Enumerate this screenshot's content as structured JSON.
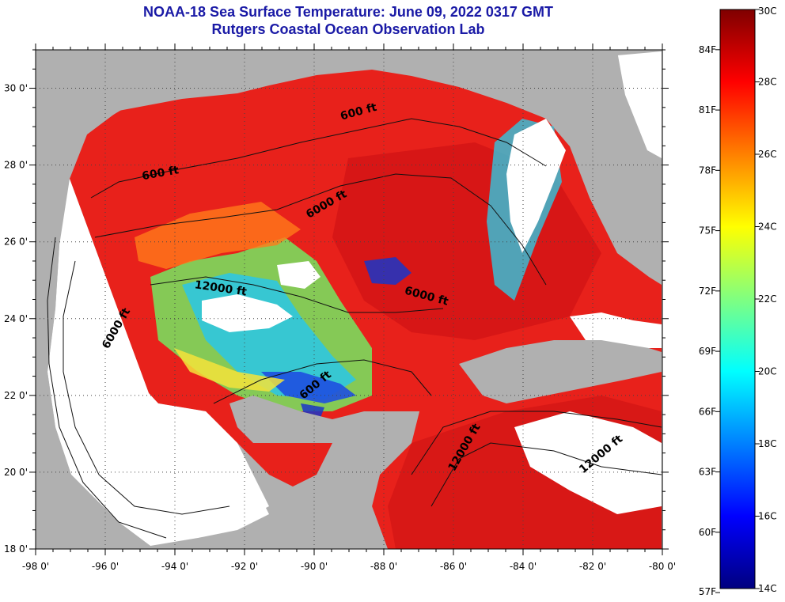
{
  "header": {
    "title_line1": "NOAA-18 Sea Surface Temperature:  June 09, 2022 0317 GMT",
    "title_line2": "Rutgers Coastal Ocean Observation Lab"
  },
  "map": {
    "lon_range": [
      -98,
      -80
    ],
    "lat_range": [
      18,
      31
    ],
    "lon_ticks": [
      {
        "value": -98,
        "label": "-98 0'"
      },
      {
        "value": -96,
        "label": "-96 0'"
      },
      {
        "value": -94,
        "label": "-94 0'"
      },
      {
        "value": -92,
        "label": "-92 0'"
      },
      {
        "value": -90,
        "label": "-90 0'"
      },
      {
        "value": -88,
        "label": "-88 0'"
      },
      {
        "value": -86,
        "label": "-86 0'"
      },
      {
        "value": -84,
        "label": "-84 0'"
      },
      {
        "value": -82,
        "label": "-82 0'"
      },
      {
        "value": -80,
        "label": "-80 0'"
      }
    ],
    "lat_ticks": [
      {
        "value": 30,
        "label": "30 0'"
      },
      {
        "value": 28,
        "label": "28 0'"
      },
      {
        "value": 26,
        "label": "26 0'"
      },
      {
        "value": 24,
        "label": "24 0'"
      },
      {
        "value": 22,
        "label": "22 0'"
      },
      {
        "value": 20,
        "label": "20 0'"
      },
      {
        "value": 18,
        "label": "18 0'"
      }
    ],
    "contour_labels": [
      {
        "text": "600 ft",
        "lon": -94.4,
        "lat": 27.7,
        "angle": -10
      },
      {
        "text": "600 ft",
        "lon": -88.7,
        "lat": 29.3,
        "angle": -15
      },
      {
        "text": "6000 ft",
        "lon": -89.6,
        "lat": 26.9,
        "angle": -30
      },
      {
        "text": "12000 ft",
        "lon": -92.7,
        "lat": 24.7,
        "angle": 8
      },
      {
        "text": "6000 ft",
        "lon": -86.8,
        "lat": 24.5,
        "angle": 15
      },
      {
        "text": "6000 ft",
        "lon": -95.6,
        "lat": 23.7,
        "angle": -60
      },
      {
        "text": "600 ft",
        "lon": -89.9,
        "lat": 22.2,
        "angle": -40
      },
      {
        "text": "12000 ft",
        "lon": -85.6,
        "lat": 20.6,
        "angle": -60
      },
      {
        "text": "12000 ft",
        "lon": -81.7,
        "lat": 20.4,
        "angle": -40
      }
    ]
  },
  "colorbar": {
    "celsius": [
      {
        "value": 30,
        "label": "30C"
      },
      {
        "value": 28,
        "label": "28C"
      },
      {
        "value": 26,
        "label": "26C"
      },
      {
        "value": 24,
        "label": "24C"
      },
      {
        "value": 22,
        "label": "22C"
      },
      {
        "value": 20,
        "label": "20C"
      },
      {
        "value": 18,
        "label": "18C"
      },
      {
        "value": 16,
        "label": "16C"
      },
      {
        "value": 14,
        "label": "14C"
      }
    ],
    "fahrenheit": [
      {
        "value": 84,
        "label": "84F"
      },
      {
        "value": 81,
        "label": "81F"
      },
      {
        "value": 78,
        "label": "78F"
      },
      {
        "value": 75,
        "label": "75F"
      },
      {
        "value": 72,
        "label": "72F"
      },
      {
        "value": 69,
        "label": "69F"
      },
      {
        "value": 66,
        "label": "66F"
      },
      {
        "value": 63,
        "label": "63F"
      },
      {
        "value": 60,
        "label": "60F"
      },
      {
        "value": 57,
        "label": "57F"
      }
    ],
    "colors": [
      "#00007f",
      "#0000ff",
      "#0080ff",
      "#00ffff",
      "#80ff80",
      "#ffff00",
      "#ff8000",
      "#ff0000",
      "#7f0000"
    ]
  },
  "colors": {
    "land": "#b0b0b0",
    "cloud": "#ffffff",
    "title": "#1a1aa6"
  }
}
